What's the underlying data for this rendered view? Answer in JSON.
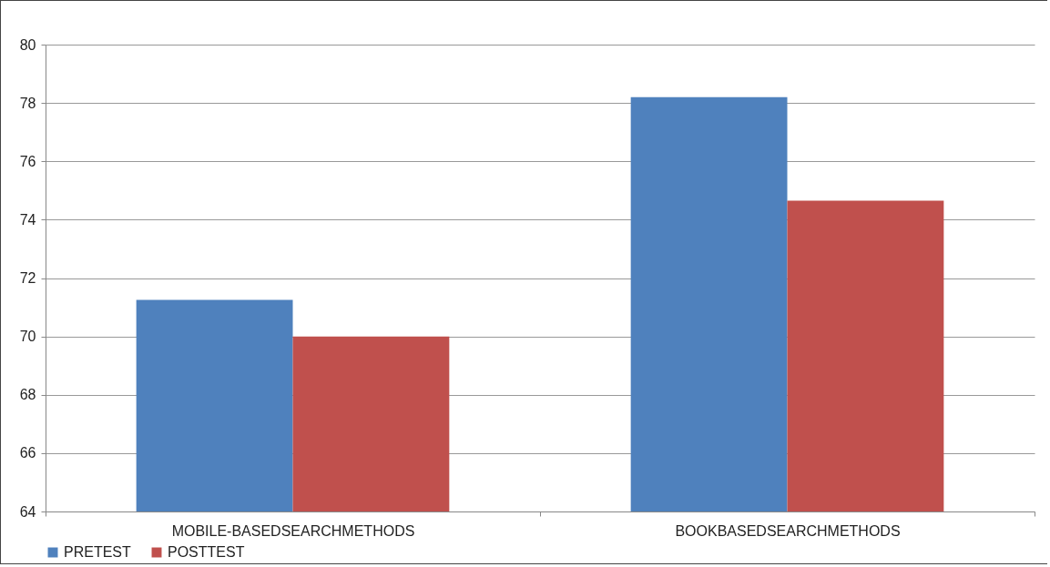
{
  "chart_data": {
    "type": "bar",
    "categories": [
      "MOBILE-BASEDSEARCHMETHODS",
      "BOOKBASEDSEARCHMETHODS"
    ],
    "series": [
      {
        "name": "PRETEST",
        "color": "#4f81bd",
        "values": [
          71.25,
          78.2
        ]
      },
      {
        "name": "POSTTEST",
        "color": "#c0504d",
        "values": [
          70.0,
          74.65
        ]
      }
    ],
    "ylim": [
      64,
      80
    ],
    "yticks": [
      64,
      66,
      68,
      70,
      72,
      74,
      76,
      78,
      80
    ],
    "grid": "y",
    "legend": "bottom"
  }
}
